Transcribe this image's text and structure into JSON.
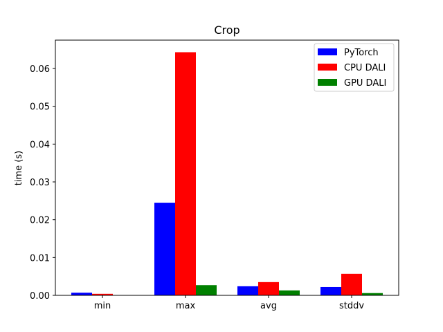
{
  "chart_data": {
    "type": "bar",
    "title": "Crop",
    "xlabel": "",
    "ylabel": "time (s)",
    "categories": [
      "min",
      "max",
      "avg",
      "stddv"
    ],
    "ylim": [
      0,
      0.0675
    ],
    "yticks": [
      0.0,
      0.01,
      0.02,
      0.03,
      0.04,
      0.05,
      0.06
    ],
    "ytick_labels": [
      "0.00",
      "0.01",
      "0.02",
      "0.03",
      "0.04",
      "0.05",
      "0.06"
    ],
    "grid": false,
    "legend_position": "top-right",
    "series": [
      {
        "name": "PyTorch",
        "color": "#0000ff",
        "values": [
          0.0007,
          0.0245,
          0.0024,
          0.0022
        ]
      },
      {
        "name": "CPU DALI",
        "color": "#ff0000",
        "values": [
          0.0004,
          0.0643,
          0.0035,
          0.0057
        ]
      },
      {
        "name": "GPU DALI",
        "color": "#008000",
        "values": [
          0.0,
          0.0027,
          0.0013,
          0.0006
        ]
      }
    ]
  }
}
